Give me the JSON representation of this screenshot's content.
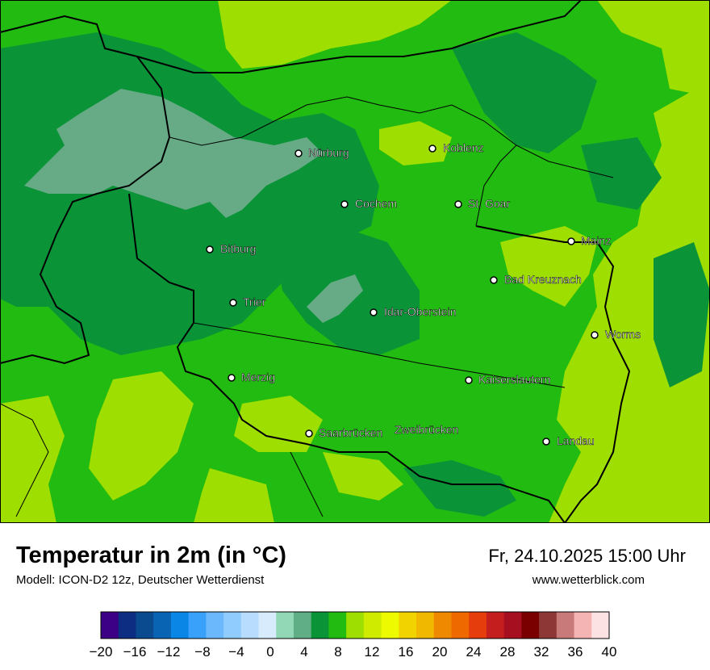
{
  "title": "Temperatur in 2m (in °C)",
  "model_line": "Modell: ICON-D2 12z, Deutscher Wetterdienst",
  "datetime": "Fr, 24.10.2025 15:00 Uhr",
  "website": "www.wetterblick.com",
  "cities": [
    {
      "name": "Nürburg"
    },
    {
      "name": "Koblenz"
    },
    {
      "name": "Cochem"
    },
    {
      "name": "St. Goar"
    },
    {
      "name": "Mainz"
    },
    {
      "name": "Bitburg"
    },
    {
      "name": "Bad Kreuznach"
    },
    {
      "name": "Trier"
    },
    {
      "name": "Idar-Oberstein"
    },
    {
      "name": "Worms"
    },
    {
      "name": "Merzig"
    },
    {
      "name": "Kaiserslautern"
    },
    {
      "name": "Saarbrücken"
    },
    {
      "name": "Zweibrücken"
    },
    {
      "name": "Landau"
    }
  ],
  "legend": {
    "ticks": [
      "−20",
      "−16",
      "−12",
      "−8",
      "−4",
      "0",
      "4",
      "8",
      "12",
      "16",
      "20",
      "24",
      "28",
      "32",
      "36",
      "40"
    ],
    "colors": [
      "#3b0085",
      "#0d2d82",
      "#0a4a8f",
      "#0a64b4",
      "#0a87e6",
      "#3aa1fa",
      "#6bb9fc",
      "#90ccfd",
      "#b8dcfd",
      "#d8ebfd",
      "#93d8b6",
      "#5fae86",
      "#0a9437",
      "#22bb11",
      "#9ede00",
      "#cfec00",
      "#eefa00",
      "#f1d300",
      "#f1b800",
      "#ef8a00",
      "#ee6a00",
      "#e53d0c",
      "#c51e1e",
      "#a60f1f",
      "#7a0000",
      "#8e3737",
      "#c87a7a",
      "#f4b4b4",
      "#fce2e2"
    ]
  }
}
